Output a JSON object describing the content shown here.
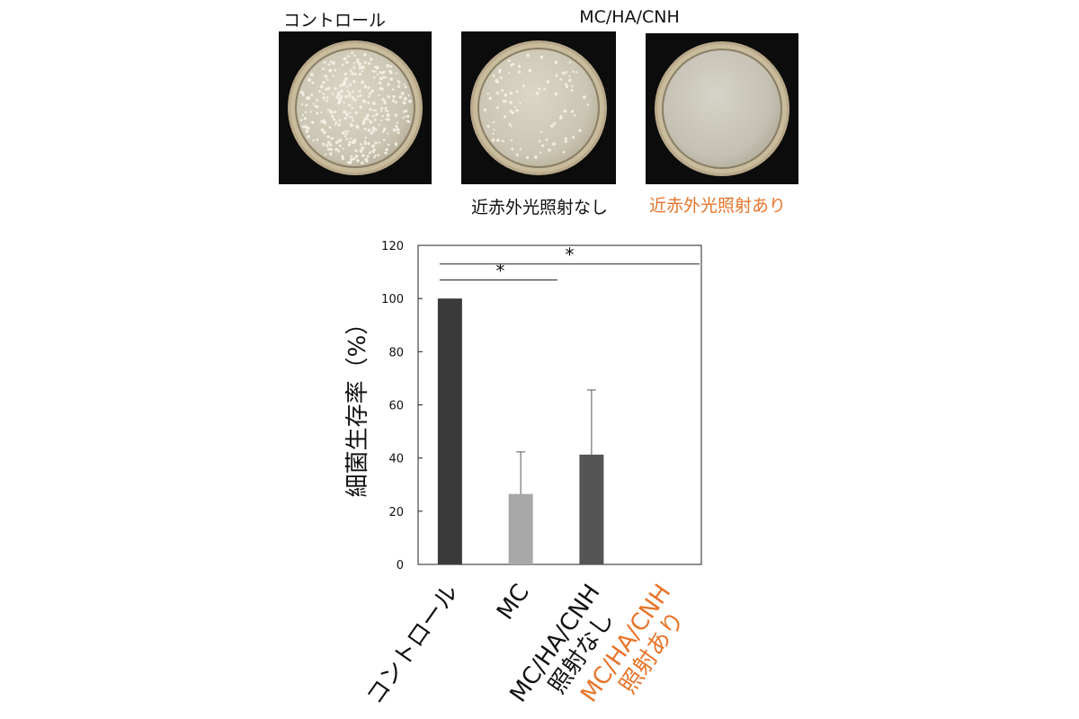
{
  "photos": {
    "control_label": "コントロール",
    "group_label": "MC/HA/CNH",
    "no_irradiation_label": "近赤外光照射なし",
    "irradiation_label": "近赤外光照射あり",
    "accent_color": "#e8742a"
  },
  "chart_data": {
    "type": "bar",
    "ylabel": "細菌生存率（%）",
    "ylim": [
      0,
      120
    ],
    "yticks": [
      0,
      20,
      40,
      60,
      80,
      100,
      120
    ],
    "categories": [
      {
        "lines": [
          "コントロール"
        ],
        "highlight": false
      },
      {
        "lines": [
          "MC"
        ],
        "highlight": false
      },
      {
        "lines": [
          "MC/HA/CNH",
          "照射なし"
        ],
        "highlight": false
      },
      {
        "lines": [
          "MC/HA/CNH",
          "照射あり"
        ],
        "highlight": true
      }
    ],
    "values": [
      100,
      26.5,
      41.3,
      0
    ],
    "error": [
      0,
      15.8,
      24.3,
      0
    ],
    "bar_colors": [
      "#3a3a3a",
      "#a8a8a8",
      "#555555",
      "#3a3a3a"
    ],
    "highlight_color": "#e8742a",
    "significance": [
      {
        "from": 0,
        "to": 2,
        "level": 107,
        "label": "*"
      },
      {
        "from": 0,
        "to": 3,
        "level": 113,
        "label": "*"
      }
    ]
  }
}
